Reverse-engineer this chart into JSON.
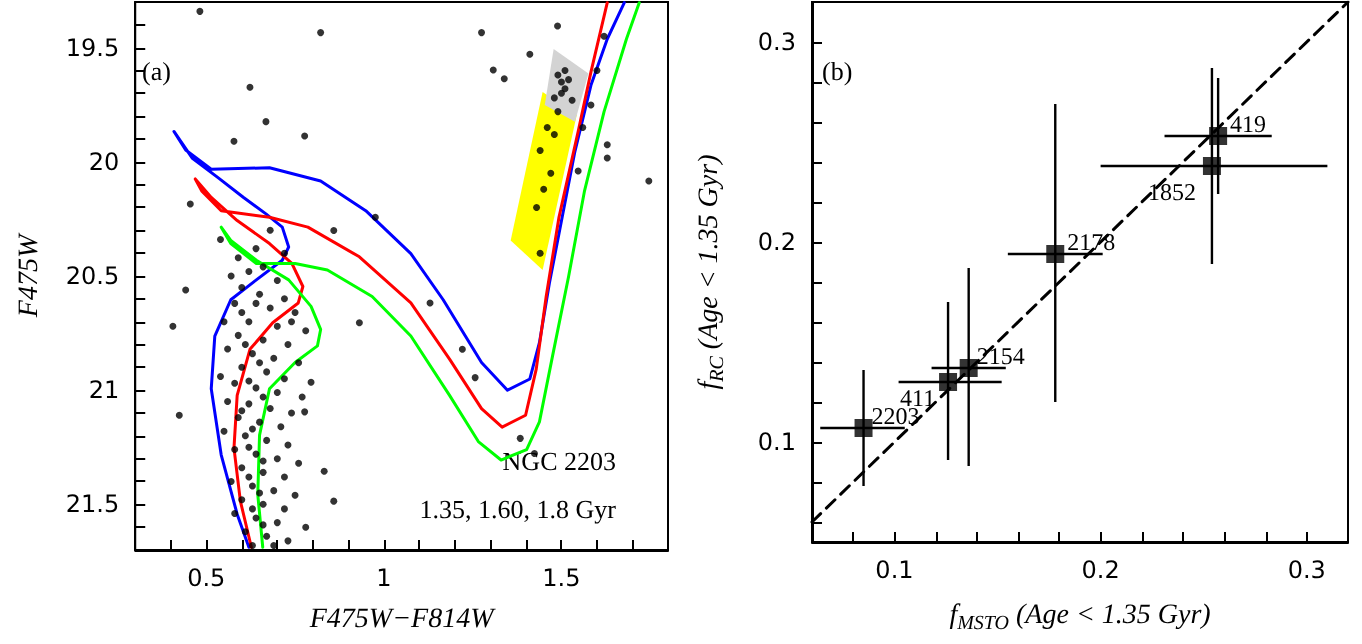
{
  "chart_data": [
    {
      "type": "scatter",
      "xlabel": "F475W−F814W",
      "ylabel": "F475W",
      "xlim": [
        0.3,
        1.8
      ],
      "ylim": [
        21.7,
        19.3
      ],
      "xticks": [
        {
          "value": 0.4,
          "label": null
        },
        0.5,
        {
          "value": 0.6,
          "label": null
        },
        {
          "value": 0.7,
          "label": null
        },
        {
          "value": 0.8,
          "label": null
        },
        {
          "value": 0.9,
          "label": null
        },
        1,
        {
          "value": 1.1,
          "label": null
        },
        {
          "value": 1.2,
          "label": null
        },
        {
          "value": 1.3,
          "label": null
        },
        {
          "value": 1.4,
          "label": null
        },
        1.5,
        {
          "value": 1.6,
          "label": null
        },
        {
          "value": 1.7,
          "label": null
        }
      ],
      "yticks": [
        {
          "value": 19.4,
          "label": null
        },
        19.5,
        {
          "value": 19.6,
          "label": null
        },
        {
          "value": 19.7,
          "label": null
        },
        {
          "value": 19.8,
          "label": null
        },
        {
          "value": 19.9,
          "label": null
        },
        20,
        {
          "value": 20.1,
          "label": null
        },
        {
          "value": 20.2,
          "label": null
        },
        {
          "value": 20.3,
          "label": null
        },
        {
          "value": 20.4,
          "label": null
        },
        20.5,
        {
          "value": 20.6,
          "label": null
        },
        {
          "value": 20.7,
          "label": null
        },
        {
          "value": 20.8,
          "label": null
        },
        {
          "value": 20.9,
          "label": null
        },
        21,
        {
          "value": 21.1,
          "label": null
        },
        {
          "value": 21.2,
          "label": null
        },
        {
          "value": 21.3,
          "label": null
        },
        {
          "value": 21.4,
          "label": null
        },
        21.5,
        {
          "value": 21.6,
          "label": null
        }
      ],
      "annotations": [
        "(a)",
        "NGC 2203",
        "1.35, 1.60, 1.8 Gyr"
      ],
      "series": [
        {
          "type": "area",
          "color": "#ffff00",
          "x": [
            1.447,
            1.543,
            1.447,
            1.357
          ],
          "values": [
            19.694,
            19.795,
            20.474,
            20.344
          ]
        },
        {
          "type": "area",
          "color": "#d3d3d3",
          "x": [
            1.478,
            1.576,
            1.538,
            1.453
          ],
          "values": [
            19.506,
            19.613,
            19.824,
            19.751
          ]
        },
        {
          "type": "scatter",
          "marker": "circle",
          "color": "#000000",
          "x": [
            0.482,
            0.822,
            0.623,
            0.668,
            0.578,
            0.777,
            0.931,
            1.13,
            1.275,
            1.308,
            1.339,
            1.411,
            1.489,
            1.629,
            1.746,
            1.583,
            1.547,
            1.629,
            0.424,
            0.442,
            0.406,
            0.859,
            0.976,
            1.221,
            1.257,
            1.384,
            1.424,
            0.832,
            0.859,
            0.795,
            0.777,
            0.455,
            0.57,
            0.62,
            0.66,
            0.7,
            0.6,
            0.65,
            0.72,
            0.58,
            0.68,
            0.75,
            0.55,
            0.62,
            0.7,
            0.78,
            0.59,
            0.66,
            0.73,
            0.56,
            0.63,
            0.69,
            0.76,
            0.6,
            0.67,
            0.54,
            0.72,
            0.58,
            0.64,
            0.7,
            0.77,
            0.56,
            0.62,
            0.68,
            0.74,
            0.59,
            0.65,
            0.71,
            0.55,
            0.61,
            0.67,
            0.73,
            0.58,
            0.64,
            0.7,
            0.76,
            0.6,
            0.66,
            0.72,
            0.57,
            0.63,
            0.69,
            0.75,
            0.6,
            0.66,
            0.72,
            0.58,
            0.64,
            0.7,
            0.78,
            0.61,
            0.67,
            0.73,
            0.63,
            0.69,
            0.6,
            0.64,
            0.74,
            0.61,
            0.65,
            0.62,
            0.66,
            0.6,
            0.63,
            0.62,
            0.66,
            0.62,
            0.65,
            0.63,
            0.66,
            0.59,
            0.64,
            0.54,
            0.68,
            0.72,
            1.49,
            1.5,
            1.51,
            1.52,
            1.5,
            1.48,
            1.51,
            1.53,
            1.49,
            1.46,
            1.44,
            1.47,
            1.45,
            1.43,
            1.44,
            1.48,
            1.56,
            1.6,
            1.62
          ],
          "values": [
            19.341,
            19.434,
            19.673,
            19.824,
            19.91,
            19.887,
            20.705,
            20.618,
            19.434,
            19.598,
            19.636,
            19.529,
            19.405,
            19.983,
            20.084,
            19.751,
            20.04,
            19.925,
            21.11,
            20.561,
            20.72,
            20.301,
            20.243,
            20.821,
            20.945,
            21.211,
            21.277,
            21.355,
            21.486,
            20.965,
            21.095,
            20.185,
            20.5,
            20.48,
            20.46,
            20.52,
            20.55,
            20.58,
            20.6,
            20.62,
            20.64,
            20.66,
            20.7,
            20.7,
            20.72,
            20.74,
            20.76,
            20.78,
            20.8,
            20.82,
            20.84,
            20.86,
            20.88,
            20.9,
            20.92,
            20.94,
            20.95,
            20.97,
            20.99,
            21.01,
            21.03,
            21.05,
            21.06,
            21.08,
            21.1,
            21.12,
            21.14,
            21.16,
            21.18,
            21.2,
            21.22,
            21.24,
            21.26,
            21.28,
            21.3,
            21.32,
            21.34,
            21.36,
            21.38,
            21.4,
            21.42,
            21.44,
            21.46,
            21.48,
            21.5,
            21.52,
            21.54,
            21.56,
            21.58,
            21.6,
            21.62,
            21.64,
            21.66,
            21.68,
            21.68,
            20.66,
            20.62,
            20.7,
            20.8,
            20.88,
            20.96,
            21.03,
            21.09,
            21.17,
            21.25,
            21.31,
            21.38,
            21.45,
            21.52,
            21.59,
            20.42,
            20.38,
            20.34,
            20.3,
            20.4,
            19.62,
            19.65,
            19.68,
            19.64,
            19.7,
            19.72,
            19.6,
            19.73,
            19.78,
            19.85,
            19.95,
            20.05,
            20.12,
            20.2,
            20.4,
            19.88,
            19.85,
            19.6,
            19.45
          ]
        },
        {
          "type": "line",
          "marker": "none",
          "color": "#0000ff",
          "x": [
            0.62,
            0.587,
            0.542,
            0.514,
            0.524,
            0.569,
            0.641,
            0.714,
            0.732,
            0.714,
            0.668,
            0.605,
            0.533,
            0.46,
            0.409,
            0.442,
            0.514,
            0.678,
            0.822,
            0.949,
            1.076,
            1.167,
            1.275,
            1.348,
            1.411,
            1.438,
            1.466,
            1.502,
            1.538,
            1.583,
            1.629,
            1.677
          ],
          "values": [
            21.688,
            21.543,
            21.283,
            20.994,
            20.763,
            20.604,
            20.517,
            20.431,
            20.373,
            20.286,
            20.228,
            20.156,
            20.069,
            19.983,
            19.867,
            19.948,
            20.032,
            20.026,
            20.084,
            20.214,
            20.402,
            20.604,
            20.879,
            21.0,
            20.951,
            20.792,
            20.532,
            20.243,
            19.954,
            19.665,
            19.462,
            19.303
          ]
        },
        {
          "type": "line",
          "marker": "none",
          "color": "#ff0000",
          "x": [
            0.627,
            0.596,
            0.578,
            0.587,
            0.623,
            0.687,
            0.759,
            0.772,
            0.741,
            0.678,
            0.587,
            0.514,
            0.469,
            0.487,
            0.542,
            0.678,
            0.786,
            0.931,
            1.076,
            1.185,
            1.275,
            1.333,
            1.399,
            1.429,
            1.457,
            1.493,
            1.547,
            1.583,
            1.629
          ],
          "values": [
            21.688,
            21.486,
            21.254,
            21.023,
            20.821,
            20.705,
            20.618,
            20.546,
            20.445,
            20.358,
            20.257,
            20.156,
            20.075,
            20.127,
            20.214,
            20.243,
            20.286,
            20.416,
            20.618,
            20.864,
            21.081,
            21.162,
            21.11,
            20.908,
            20.59,
            20.243,
            19.867,
            19.607,
            19.303
          ]
        },
        {
          "type": "line",
          "marker": "none",
          "color": "#00ff00",
          "x": [
            0.659,
            0.645,
            0.65,
            0.678,
            0.75,
            0.813,
            0.822,
            0.795,
            0.732,
            0.641,
            0.569,
            0.542,
            0.569,
            0.641,
            0.75,
            0.841,
            0.967,
            1.076,
            1.185,
            1.266,
            1.33,
            1.402,
            1.438,
            1.475,
            1.52,
            1.565,
            1.62,
            1.683,
            1.719
          ],
          "values": [
            21.688,
            21.457,
            21.197,
            20.994,
            20.879,
            20.806,
            20.734,
            20.633,
            20.517,
            20.431,
            20.344,
            20.286,
            20.358,
            20.445,
            20.445,
            20.474,
            20.59,
            20.763,
            21.023,
            21.225,
            21.306,
            21.26,
            21.139,
            20.85,
            20.503,
            20.127,
            19.78,
            19.462,
            19.303
          ]
        }
      ]
    },
    {
      "type": "scatter",
      "xlabel": "f$_{MSTO}$ (Age < 1.35 Gyr)",
      "ylabel": "f$_{RC}$ (Age < 1.35 Gyr)",
      "xlim": [
        0.06,
        0.32
      ],
      "ylim": [
        0.05,
        0.32
      ],
      "xticks": [
        {
          "value": 0.06,
          "label": null
        },
        {
          "value": 0.08,
          "label": null
        },
        0.1,
        {
          "value": 0.12,
          "label": null
        },
        {
          "value": 0.14,
          "label": null
        },
        {
          "value": 0.16,
          "label": null
        },
        {
          "value": 0.18,
          "label": null
        },
        0.2,
        {
          "value": 0.22,
          "label": null
        },
        {
          "value": 0.24,
          "label": null
        },
        {
          "value": 0.26,
          "label": null
        },
        {
          "value": 0.28,
          "label": null
        },
        0.3
      ],
      "yticks": [
        {
          "value": 0.06,
          "label": null
        },
        {
          "value": 0.08,
          "label": null
        },
        0.1,
        {
          "value": 0.12,
          "label": null
        },
        {
          "value": 0.14,
          "label": null
        },
        {
          "value": 0.16,
          "label": null
        },
        {
          "value": 0.18,
          "label": null
        },
        0.2,
        {
          "value": 0.22,
          "label": null
        },
        {
          "value": 0.24,
          "label": null
        },
        {
          "value": 0.26,
          "label": null
        },
        {
          "value": 0.28,
          "label": null
        },
        0.3
      ],
      "annotations": [
        "(b)",
        {
          "text": "2203",
          "x": 0.085,
          "y": 0.107
        },
        {
          "text": "411",
          "x": 0.126,
          "y": 0.13
        },
        {
          "text": "2154",
          "x": 0.136,
          "y": 0.137
        },
        {
          "text": "2178",
          "x": 0.178,
          "y": 0.194
        },
        {
          "text": "1852",
          "x": 0.254,
          "y": 0.238
        },
        {
          "text": "419",
          "x": 0.257,
          "y": 0.253
        }
      ],
      "series": [
        {
          "type": "line",
          "marker": "none",
          "line_style": "dashed",
          "color": "#000000",
          "x": [
            0.06,
            0.32
          ],
          "values": [
            0.06,
            0.32
          ]
        },
        {
          "type": "scatter",
          "marker": "square",
          "color": "#000000",
          "x": [
            0.085,
            0.126,
            0.136,
            0.178,
            0.254,
            0.257
          ],
          "values": [
            0.107,
            0.13,
            0.137,
            0.194,
            0.238,
            0.253
          ],
          "xerrors": [
            [
              0.064,
              0.105
            ],
            [
              0.102,
              0.152
            ],
            [
              0.118,
              0.154
            ],
            [
              0.155,
              0.201
            ],
            [
              0.2,
              0.31
            ],
            [
              0.231,
              0.283
            ]
          ],
          "errors": [
            [
              0.078,
              0.136
            ],
            [
              0.091,
              0.17
            ],
            [
              0.088,
              0.187
            ],
            [
              0.12,
              0.269
            ],
            [
              0.189,
              0.287
            ],
            [
              0.224,
              0.282
            ]
          ]
        }
      ]
    }
  ]
}
